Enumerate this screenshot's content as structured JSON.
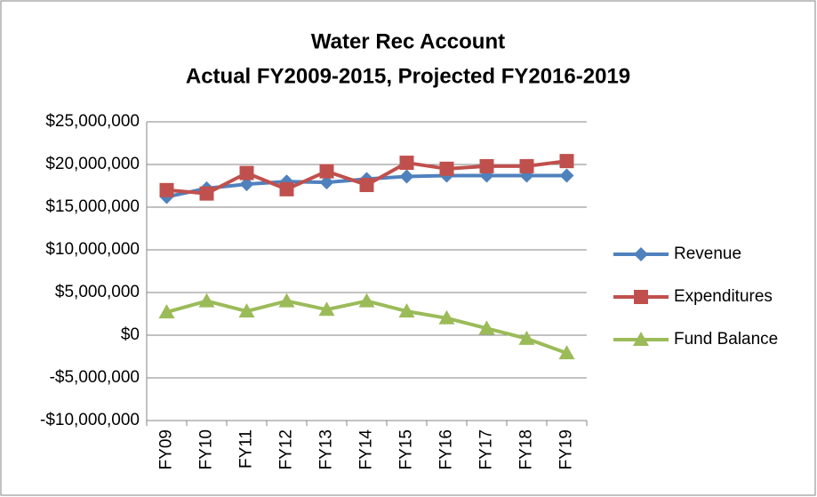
{
  "chart_data": {
    "type": "line",
    "title": "Water Rec Account",
    "subtitle": "Actual FY2009-2015, Projected FY2016-2019",
    "categories": [
      "FY09",
      "FY10",
      "FY11",
      "FY12",
      "FY13",
      "FY14",
      "FY15",
      "FY16",
      "FY17",
      "FY18",
      "FY19"
    ],
    "series": [
      {
        "name": "Revenue",
        "color": "#4f81bd",
        "marker": "diamond",
        "values": [
          16200000,
          17200000,
          17700000,
          18000000,
          17900000,
          18300000,
          18600000,
          18700000,
          18700000,
          18700000,
          18700000
        ]
      },
      {
        "name": "Expenditures",
        "color": "#c0504d",
        "marker": "square",
        "values": [
          17000000,
          16600000,
          19000000,
          17100000,
          19200000,
          17600000,
          20200000,
          19500000,
          19800000,
          19800000,
          20400000
        ]
      },
      {
        "name": "Fund Balance",
        "color": "#9bbb59",
        "marker": "triangle",
        "values": [
          2700000,
          4000000,
          2800000,
          4000000,
          3000000,
          4000000,
          2800000,
          2000000,
          800000,
          -400000,
          -2100000
        ]
      }
    ],
    "ylim": [
      -10000000,
      25000000
    ],
    "yticks": [
      {
        "value": -10000000,
        "label": "-$10,000,000"
      },
      {
        "value": -5000000,
        "label": "-$5,000,000"
      },
      {
        "value": 0,
        "label": "$0"
      },
      {
        "value": 5000000,
        "label": "$5,000,000"
      },
      {
        "value": 10000000,
        "label": "$10,000,000"
      },
      {
        "value": 15000000,
        "label": "$15,000,000"
      },
      {
        "value": 20000000,
        "label": "$20,000,000"
      },
      {
        "value": 25000000,
        "label": "$25,000,000"
      }
    ],
    "grid": true,
    "legend": "right"
  }
}
